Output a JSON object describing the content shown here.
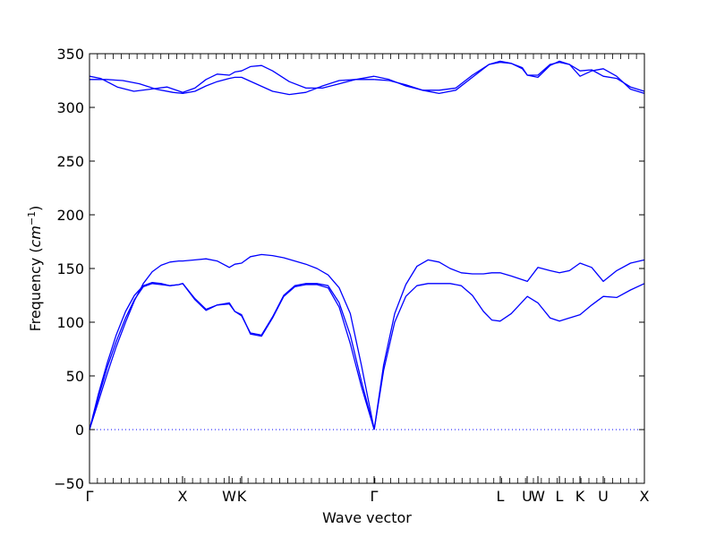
{
  "chart_data": {
    "type": "line",
    "title": "",
    "xlabel": "Wave vector",
    "ylabel": "Frequency ($cm^{-1}$)",
    "ylabel_text": "Frequency (",
    "ylabel_unit_base": "cm",
    "ylabel_unit_exp": "−1",
    "ylabel_close": ")",
    "ylim": [
      -50,
      350
    ],
    "yticks": [
      -50,
      0,
      50,
      100,
      150,
      200,
      250,
      300,
      350
    ],
    "ytick_labels": [
      "−50",
      "0",
      "50",
      "100",
      "150",
      "200",
      "250",
      "300",
      "350"
    ],
    "xlim": [
      0,
      1
    ],
    "xticks": [
      {
        "pos": 0.0,
        "label": "Γ"
      },
      {
        "pos": 0.1677,
        "label": "X"
      },
      {
        "pos": 0.2516,
        "label": "W"
      },
      {
        "pos": 0.2742,
        "label": "K"
      },
      {
        "pos": 0.5129,
        "label": "Γ"
      },
      {
        "pos": 0.7403,
        "label": "L"
      },
      {
        "pos": 0.7887,
        "label": "U"
      },
      {
        "pos": 0.8081,
        "label": "W"
      },
      {
        "pos": 0.8468,
        "label": "L"
      },
      {
        "pos": 0.8839,
        "label": "K"
      },
      {
        "pos": 0.9258,
        "label": "U"
      },
      {
        "pos": 1.0,
        "label": "X"
      }
    ],
    "grid": false,
    "zero_line": {
      "y": 0,
      "style": "dotted",
      "color": "#0000ff"
    },
    "series_color": "#0000ff",
    "series": [
      {
        "x": [
          0,
          0.016,
          0.032,
          0.048,
          0.065,
          0.081,
          0.097,
          0.113,
          0.129,
          0.145,
          0.161,
          0.168,
          0.19,
          0.21,
          0.23,
          0.252,
          0.262,
          0.274,
          0.29,
          0.31,
          0.33,
          0.35,
          0.37,
          0.39,
          0.41,
          0.43,
          0.45,
          0.47,
          0.49,
          0.513
        ],
        "y": [
          0,
          33,
          62,
          88,
          110,
          125,
          134,
          137,
          136,
          134,
          135,
          136,
          121,
          111,
          116,
          118,
          110,
          106,
          90,
          88,
          105,
          125,
          134,
          136,
          136,
          134,
          118,
          88,
          45,
          0
        ]
      },
      {
        "x": [
          0,
          0.016,
          0.032,
          0.048,
          0.065,
          0.081,
          0.097,
          0.113,
          0.129,
          0.145,
          0.161,
          0.168,
          0.19,
          0.21,
          0.23,
          0.252,
          0.262,
          0.274,
          0.29,
          0.31,
          0.33,
          0.35,
          0.37,
          0.39,
          0.41,
          0.43,
          0.45,
          0.47,
          0.49,
          0.513
        ],
        "y": [
          0,
          30,
          58,
          82,
          104,
          121,
          133,
          136,
          135,
          134,
          135,
          136,
          122,
          112,
          116,
          117,
          110,
          107,
          89,
          87,
          104,
          124,
          133,
          135,
          135,
          132,
          114,
          80,
          40,
          0
        ]
      },
      {
        "x": [
          0,
          0.016,
          0.032,
          0.048,
          0.065,
          0.081,
          0.097,
          0.113,
          0.129,
          0.145,
          0.161,
          0.168,
          0.19,
          0.21,
          0.23,
          0.252,
          0.262,
          0.274,
          0.29,
          0.31,
          0.33,
          0.35,
          0.37,
          0.39,
          0.41,
          0.43,
          0.45,
          0.47,
          0.49,
          0.513
        ],
        "y": [
          0,
          26,
          52,
          77,
          100,
          120,
          136,
          147,
          153,
          156,
          157,
          157,
          158,
          159,
          157,
          151,
          154,
          155,
          161,
          163,
          162,
          160,
          157,
          154,
          150,
          144,
          132,
          108,
          60,
          0
        ]
      },
      {
        "x": [
          0.513,
          0.53,
          0.55,
          0.57,
          0.59,
          0.61,
          0.63,
          0.65,
          0.67,
          0.69,
          0.71,
          0.725,
          0.74,
          0.76,
          0.789,
          0.808,
          0.83,
          0.847,
          0.865,
          0.884,
          0.905,
          0.926,
          0.95,
          0.975,
          1.0
        ],
        "y": [
          0,
          55,
          100,
          124,
          134,
          136,
          136,
          136,
          134,
          125,
          110,
          102,
          101,
          108,
          124,
          118,
          104,
          101,
          104,
          107,
          116,
          124,
          123,
          130,
          136
        ]
      },
      {
        "x": [
          0.513,
          0.53,
          0.55,
          0.57,
          0.59,
          0.61,
          0.63,
          0.65,
          0.67,
          0.69,
          0.71,
          0.725,
          0.74,
          0.76,
          0.789,
          0.808,
          0.83,
          0.847,
          0.865,
          0.884,
          0.905,
          0.926,
          0.95,
          0.975,
          1.0
        ],
        "y": [
          0,
          60,
          108,
          135,
          152,
          158,
          156,
          150,
          146,
          145,
          145,
          146,
          146,
          143,
          138,
          151,
          148,
          146,
          148,
          155,
          151,
          138,
          148,
          155,
          158
        ]
      },
      {
        "x": [
          0,
          0.02,
          0.05,
          0.08,
          0.11,
          0.14,
          0.168,
          0.19,
          0.21,
          0.23,
          0.252,
          0.262,
          0.274,
          0.29,
          0.31,
          0.33,
          0.36,
          0.39,
          0.42,
          0.45,
          0.48,
          0.513
        ],
        "y": [
          329,
          327,
          319,
          315,
          317,
          319,
          314,
          318,
          326,
          331,
          330,
          333,
          334,
          338,
          339,
          334,
          324,
          318,
          318,
          322,
          326,
          329
        ]
      },
      {
        "x": [
          0,
          0.03,
          0.06,
          0.09,
          0.12,
          0.15,
          0.168,
          0.19,
          0.21,
          0.23,
          0.252,
          0.262,
          0.274,
          0.3,
          0.33,
          0.36,
          0.39,
          0.42,
          0.45,
          0.48,
          0.513
        ],
        "y": [
          326,
          326,
          325,
          322,
          317,
          314,
          313,
          315,
          320,
          324,
          327,
          328,
          328,
          322,
          315,
          312,
          314,
          320,
          325,
          326,
          326
        ]
      },
      {
        "x": [
          0.513,
          0.54,
          0.57,
          0.6,
          0.63,
          0.66,
          0.69,
          0.72,
          0.74,
          0.76,
          0.78,
          0.789,
          0.808,
          0.83,
          0.847,
          0.865,
          0.884,
          0.905,
          0.926,
          0.95,
          0.975,
          1.0
        ],
        "y": [
          329,
          326,
          320,
          316,
          316,
          318,
          330,
          340,
          342,
          341,
          336,
          330,
          330,
          340,
          342,
          340,
          334,
          335,
          329,
          327,
          319,
          315
        ]
      },
      {
        "x": [
          0.513,
          0.54,
          0.57,
          0.6,
          0.63,
          0.66,
          0.69,
          0.72,
          0.74,
          0.76,
          0.78,
          0.789,
          0.808,
          0.83,
          0.847,
          0.865,
          0.884,
          0.905,
          0.926,
          0.95,
          0.975,
          1.0
        ],
        "y": [
          326,
          325,
          321,
          316,
          313,
          316,
          328,
          340,
          343,
          341,
          337,
          330,
          328,
          339,
          343,
          340,
          329,
          334,
          336,
          329,
          317,
          313
        ]
      }
    ]
  }
}
